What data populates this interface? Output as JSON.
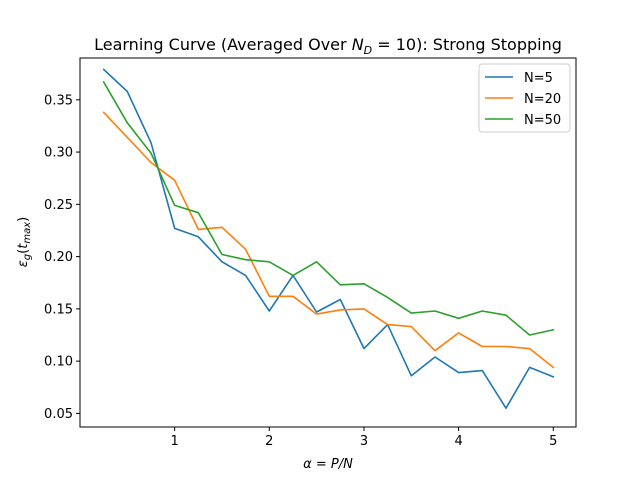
{
  "chart_data": {
    "type": "line",
    "title": {
      "prefix": "Learning Curve (Averaged Over ",
      "math_var": "N",
      "math_sub": "D",
      "math_eq": " = 10",
      "suffix": "): Strong Stopping"
    },
    "xlabel": {
      "lhs": "α",
      "eq": " = ",
      "rhs": "P/N"
    },
    "ylabel": {
      "symbol": "ε",
      "sub": "g",
      "arg": "t",
      "arg_sub": "max"
    },
    "xlim": [
      0.0,
      5.24
    ],
    "ylim": [
      0.037,
      0.39
    ],
    "xticks": [
      1,
      2,
      3,
      4,
      5
    ],
    "yticks": [
      0.05,
      0.1,
      0.15,
      0.2,
      0.25,
      0.3,
      0.35
    ],
    "x": [
      0.25,
      0.5,
      0.75,
      1.0,
      1.25,
      1.5,
      1.75,
      2.0,
      2.25,
      2.5,
      2.75,
      3.0,
      3.25,
      3.5,
      3.75,
      4.0,
      4.25,
      4.5,
      4.75,
      5.0
    ],
    "series": [
      {
        "name": "N=5",
        "color": "#1f77b4",
        "values": [
          0.379,
          0.358,
          0.309,
          0.227,
          0.219,
          0.195,
          0.182,
          0.148,
          0.182,
          0.147,
          0.159,
          0.112,
          0.135,
          0.086,
          0.104,
          0.089,
          0.091,
          0.055,
          0.094,
          0.085
        ]
      },
      {
        "name": "N=20",
        "color": "#ff7f0e",
        "values": [
          0.338,
          0.314,
          0.29,
          0.273,
          0.226,
          0.228,
          0.207,
          0.162,
          0.162,
          0.145,
          0.149,
          0.15,
          0.135,
          0.133,
          0.11,
          0.127,
          0.114,
          0.114,
          0.112,
          0.094
        ]
      },
      {
        "name": "N=50",
        "color": "#2ca02c",
        "values": [
          0.367,
          0.328,
          0.299,
          0.249,
          0.242,
          0.202,
          0.197,
          0.195,
          0.182,
          0.195,
          0.173,
          0.174,
          0.161,
          0.146,
          0.148,
          0.141,
          0.148,
          0.144,
          0.125,
          0.13
        ]
      }
    ],
    "grid": false,
    "legend": "top-right"
  }
}
